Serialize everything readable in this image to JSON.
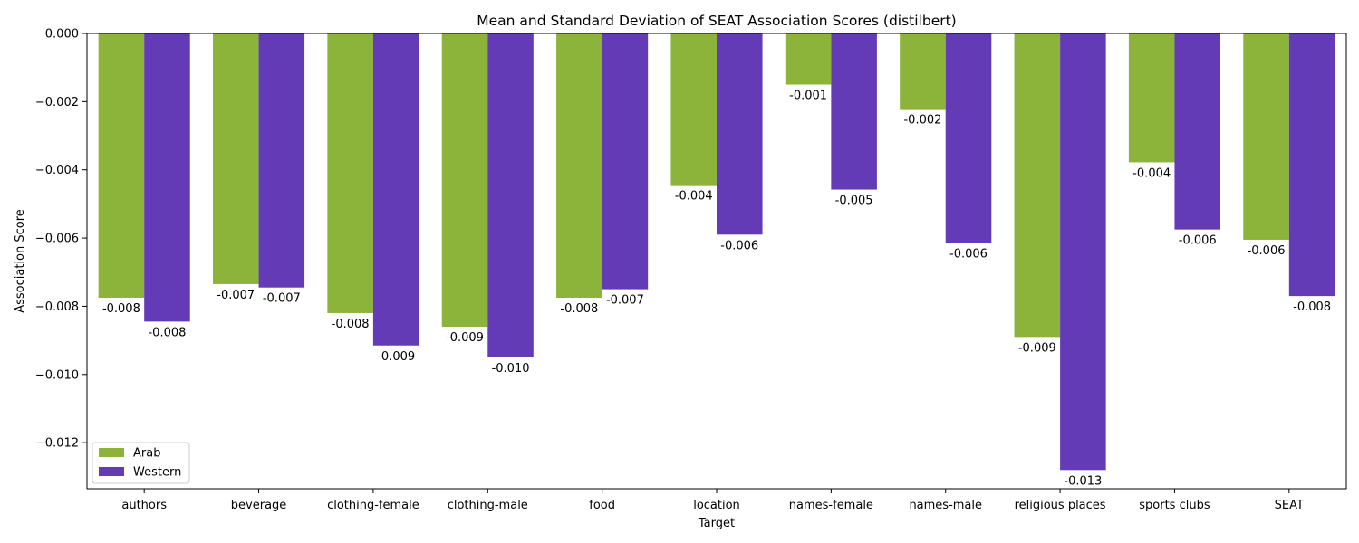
{
  "chart_data": {
    "type": "bar",
    "title": "Mean and Standard Deviation of SEAT Association Scores (distilbert)",
    "xlabel": "Target",
    "ylabel": "Association Score",
    "categories": [
      "authors",
      "beverage",
      "clothing-female",
      "clothing-male",
      "food",
      "location",
      "names-female",
      "names-male",
      "religious places",
      "sports clubs",
      "SEAT"
    ],
    "series": [
      {
        "name": "Arab",
        "color": "#8db43a",
        "values": [
          -0.00775,
          -0.00735,
          -0.0082,
          -0.0086,
          -0.00775,
          -0.00445,
          -0.0015,
          -0.00222,
          -0.0089,
          -0.00378,
          -0.00605
        ],
        "labels": [
          "-0.008",
          "-0.007",
          "-0.008",
          "-0.009",
          "-0.008",
          "-0.004",
          "-0.001",
          "-0.002",
          "-0.009",
          "-0.004",
          "-0.006"
        ]
      },
      {
        "name": "Western",
        "color": "#643bb6",
        "values": [
          -0.00845,
          -0.00745,
          -0.00915,
          -0.0095,
          -0.0075,
          -0.0059,
          -0.00458,
          -0.00615,
          -0.0128,
          -0.00575,
          -0.0077
        ],
        "labels": [
          "-0.008",
          "-0.007",
          "-0.009",
          "-0.010",
          "-0.007",
          "-0.006",
          "-0.005",
          "-0.006",
          "-0.013",
          "-0.006",
          "-0.008"
        ]
      }
    ],
    "ylim": [
      -0.01335,
      0.0
    ],
    "yticks": [
      0.0,
      -0.002,
      -0.004,
      -0.006,
      -0.008,
      -0.01,
      -0.012
    ],
    "ytick_labels": [
      "0.000",
      "−0.002",
      "−0.004",
      "−0.006",
      "−0.008",
      "−0.010",
      "−0.012"
    ],
    "legend_position": "lower-left",
    "grid": false
  }
}
